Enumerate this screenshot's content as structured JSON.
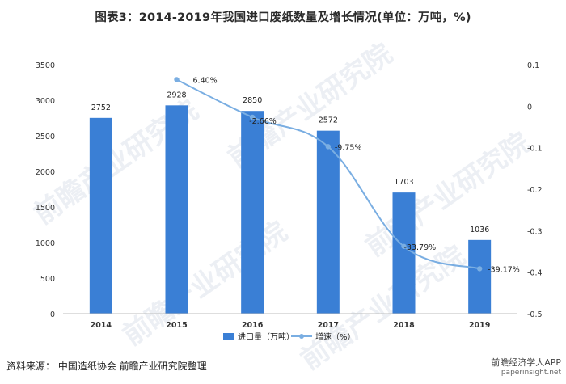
{
  "title": "图表3：2014-2019年我国进口废纸数量及增长情况(单位：万吨，%)",
  "source": "资料来源： 中国造纸协会 前瞻产业研究院整理",
  "footer_logo": "前瞻经济学人APP",
  "footer_url": "paperinsight.net",
  "watermark": "前瞻产业研究院",
  "colors": {
    "bar": "#3a7fd5",
    "line": "#7aaee2",
    "grid": "#e6e6e6",
    "axis": "#bdbdbd"
  },
  "chart_data": {
    "type": "bar+line",
    "categories": [
      "2014",
      "2015",
      "2016",
      "2017",
      "2018",
      "2019"
    ],
    "series": [
      {
        "name": "进口量（万吨）",
        "type": "bar",
        "axis": "left",
        "values": [
          2752,
          2928,
          2850,
          2572,
          1703,
          1036
        ],
        "labels": [
          "2752",
          "2928",
          "2850",
          "2572",
          "1703",
          "1036"
        ]
      },
      {
        "name": "增速（%）",
        "type": "line",
        "axis": "right",
        "values": [
          null,
          0.064,
          -0.0266,
          -0.0975,
          -0.3379,
          -0.3917
        ],
        "labels": [
          "",
          "6.40%",
          "-2.66%",
          "-9.75%",
          "-33.79%",
          "-39.17%"
        ]
      }
    ],
    "y_left": {
      "min": 0,
      "max": 3500,
      "ticks": [
        "0",
        "500",
        "1000",
        "1500",
        "2000",
        "2500",
        "3000",
        "3500"
      ]
    },
    "y_right": {
      "min": -0.5,
      "max": 0.1,
      "ticks": [
        "-0.5",
        "-0.4",
        "-0.3",
        "-0.2",
        "-0.1",
        "0",
        "0.1"
      ]
    },
    "legend_position": "bottom-center",
    "grid": true
  }
}
